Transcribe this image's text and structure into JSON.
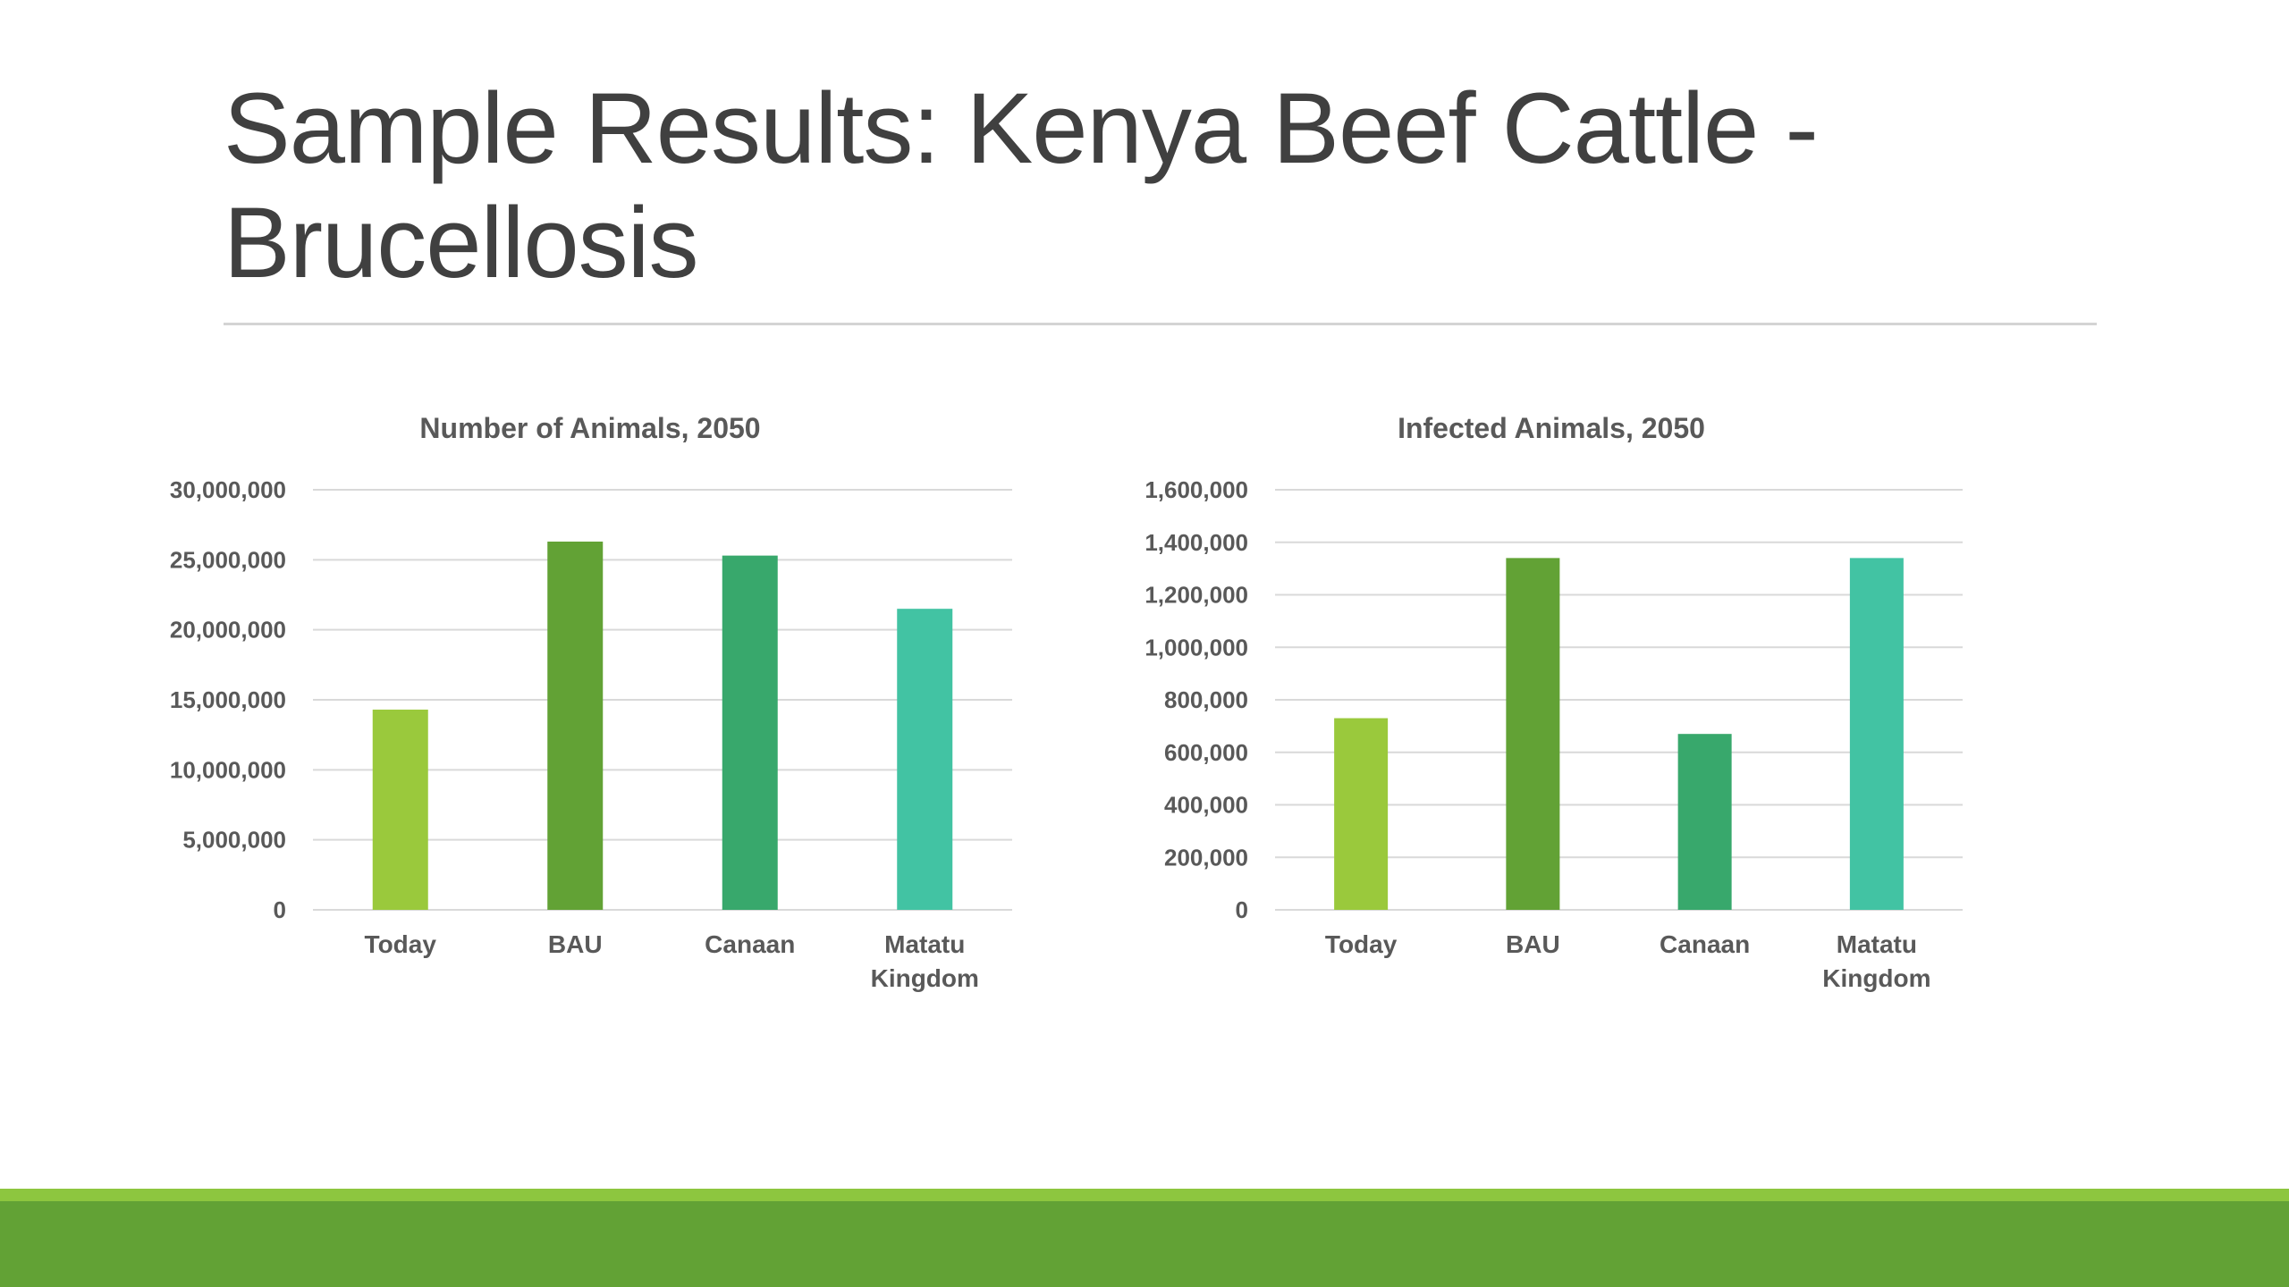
{
  "slide": {
    "title": "Sample Results: Kenya Beef Cattle - Brucellosis"
  },
  "colors": {
    "title_text": "#404040",
    "axis_text": "#595959",
    "gridline": "#d9d9d9",
    "divider": "#d4d4d4",
    "footer_light": "#8dc63f",
    "footer_dark": "#62a235",
    "bar_today": "#9ac93c",
    "bar_bau": "#62a235",
    "bar_canaan": "#38a86c",
    "bar_matatu": "#42c3a3"
  },
  "chart_data": [
    {
      "type": "bar",
      "title": "Number of Animals, 2050",
      "categories": [
        [
          "Today"
        ],
        [
          "BAU"
        ],
        [
          "Canaan"
        ],
        [
          "Matatu",
          "Kingdom"
        ]
      ],
      "values": [
        14300000,
        26300000,
        25300000,
        21500000
      ],
      "ylim": [
        0,
        30000000
      ],
      "yticks": [
        "0",
        "5,000,000",
        "10,000,000",
        "15,000,000",
        "20,000,000",
        "25,000,000",
        "30,000,000"
      ],
      "grid": true,
      "legend": "none",
      "bar_colors": [
        "#9ac93c",
        "#62a235",
        "#38a86c",
        "#42c3a3"
      ]
    },
    {
      "type": "bar",
      "title": "Infected Animals, 2050",
      "categories": [
        [
          "Today"
        ],
        [
          "BAU"
        ],
        [
          "Canaan"
        ],
        [
          "Matatu",
          "Kingdom"
        ]
      ],
      "values": [
        730000,
        1340000,
        670000,
        1340000
      ],
      "ylim": [
        0,
        1600000
      ],
      "yticks": [
        "0",
        "200,000",
        "400,000",
        "600,000",
        "800,000",
        "1,000,000",
        "1,200,000",
        "1,400,000",
        "1,600,000"
      ],
      "grid": true,
      "legend": "none",
      "bar_colors": [
        "#9ac93c",
        "#62a235",
        "#38a86c",
        "#42c3a3"
      ]
    }
  ]
}
